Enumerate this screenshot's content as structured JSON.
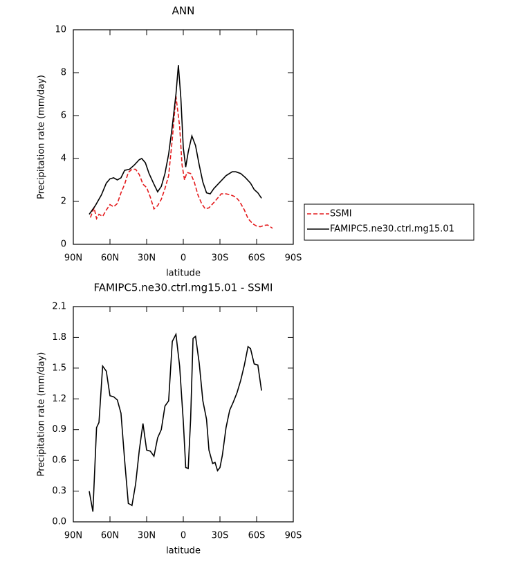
{
  "chart_data": [
    {
      "type": "line",
      "title": "ANN",
      "x_label": "latitude",
      "y_label": "Precipitation rate (mm/day)",
      "xlim": [
        90,
        -90
      ],
      "xticks": [
        {
          "value": 90,
          "label": "90N"
        },
        {
          "value": 60,
          "label": "60N"
        },
        {
          "value": 30,
          "label": "30N"
        },
        0,
        {
          "value": -30,
          "label": "30S"
        },
        {
          "value": -60,
          "label": "60S"
        },
        {
          "value": -90,
          "label": "90S"
        }
      ],
      "ylim": [
        0,
        10
      ],
      "yticks": [
        0,
        2,
        4,
        6,
        8,
        10
      ],
      "legend": "right",
      "series": [
        {
          "name": "SSMI",
          "color": "#e41a1c",
          "dashed": true,
          "x": [
            76,
            73,
            71,
            69,
            66,
            63,
            60,
            57,
            54,
            51,
            48,
            45,
            42,
            39,
            36,
            33,
            30,
            27,
            24,
            21,
            18,
            15,
            12,
            9,
            6,
            3,
            1,
            -1,
            -3,
            -6,
            -9,
            -12,
            -15,
            -18,
            -21,
            -25,
            -28,
            -31,
            -35,
            -39,
            -43,
            -46,
            -50,
            -53,
            -57,
            -60,
            -63,
            -66,
            -69,
            -73
          ],
          "values": [
            1.25,
            1.7,
            1.2,
            1.4,
            1.3,
            1.6,
            1.85,
            1.75,
            1.9,
            2.4,
            2.8,
            3.35,
            3.5,
            3.5,
            3.25,
            2.8,
            2.65,
            2.2,
            1.65,
            1.8,
            2.1,
            2.6,
            3.2,
            4.9,
            6.9,
            5.5,
            3.7,
            3.0,
            3.35,
            3.3,
            2.9,
            2.3,
            1.9,
            1.65,
            1.7,
            1.95,
            2.15,
            2.35,
            2.35,
            2.3,
            2.2,
            2.0,
            1.6,
            1.2,
            0.95,
            0.85,
            0.82,
            0.88,
            0.9,
            0.75
          ]
        },
        {
          "name": "FAMIPC5.ne30.ctrl.mg15.01",
          "color": "#000000",
          "dashed": false,
          "x": [
            77,
            72,
            67,
            63,
            60,
            57,
            54,
            51,
            48,
            44,
            40,
            36,
            34,
            31,
            28,
            24,
            21,
            18,
            15,
            12,
            9,
            6,
            4,
            2,
            0,
            -2,
            -4,
            -7,
            -10,
            -13,
            -16,
            -19,
            -22,
            -25,
            -30,
            -35,
            -40,
            -43,
            -47,
            -51,
            -55,
            -58,
            -61,
            -64
          ],
          "values": [
            1.4,
            1.8,
            2.3,
            2.85,
            3.05,
            3.1,
            3.0,
            3.1,
            3.45,
            3.5,
            3.7,
            3.95,
            4.0,
            3.8,
            3.3,
            2.8,
            2.45,
            2.7,
            3.3,
            4.2,
            5.5,
            7.0,
            8.35,
            6.8,
            4.5,
            3.6,
            4.3,
            5.05,
            4.6,
            3.7,
            2.9,
            2.4,
            2.35,
            2.6,
            2.9,
            3.2,
            3.38,
            3.38,
            3.3,
            3.1,
            2.85,
            2.55,
            2.4,
            2.15
          ]
        }
      ]
    },
    {
      "type": "line",
      "title": "FAMIPC5.ne30.ctrl.mg15.01 - SSMI",
      "x_label": "latitude",
      "y_label": "Precipitation rate (mm/day)",
      "xlim": [
        90,
        -90
      ],
      "xticks": [
        {
          "value": 90,
          "label": "90N"
        },
        {
          "value": 60,
          "label": "60N"
        },
        {
          "value": 30,
          "label": "30N"
        },
        0,
        {
          "value": -30,
          "label": "30S"
        },
        {
          "value": -60,
          "label": "60S"
        },
        {
          "value": -90,
          "label": "90S"
        }
      ],
      "ylim": [
        0,
        2.1
      ],
      "yticks": [
        {
          "value": 0,
          "label": "0.0"
        },
        0.3,
        0.6,
        0.9,
        1.2,
        1.5,
        1.8,
        2.1
      ],
      "color": "#000000",
      "x": [
        77,
        74,
        71,
        69,
        66,
        63,
        60,
        57,
        54,
        51,
        48,
        45,
        42,
        39,
        36,
        33,
        30,
        27,
        24,
        21,
        18,
        15,
        12,
        9,
        6,
        3,
        0,
        -2,
        -4,
        -6,
        -8,
        -10,
        -13,
        -16,
        -19,
        -21,
        -24,
        -26,
        -28,
        -30,
        -32,
        -35,
        -38,
        -41,
        -44,
        -47,
        -50,
        -53,
        -55,
        -58,
        -61,
        -64
      ],
      "values": [
        0.3,
        0.1,
        0.92,
        0.97,
        1.52,
        1.47,
        1.23,
        1.22,
        1.19,
        1.06,
        0.6,
        0.18,
        0.16,
        0.37,
        0.7,
        0.96,
        0.7,
        0.69,
        0.64,
        0.82,
        0.9,
        1.13,
        1.18,
        1.76,
        1.83,
        1.52,
        0.98,
        0.53,
        0.52,
        1.0,
        1.79,
        1.81,
        1.55,
        1.18,
        1.0,
        0.7,
        0.57,
        0.58,
        0.5,
        0.53,
        0.65,
        0.92,
        1.09,
        1.17,
        1.26,
        1.38,
        1.53,
        1.71,
        1.69,
        1.54,
        1.53,
        1.28
      ]
    }
  ]
}
